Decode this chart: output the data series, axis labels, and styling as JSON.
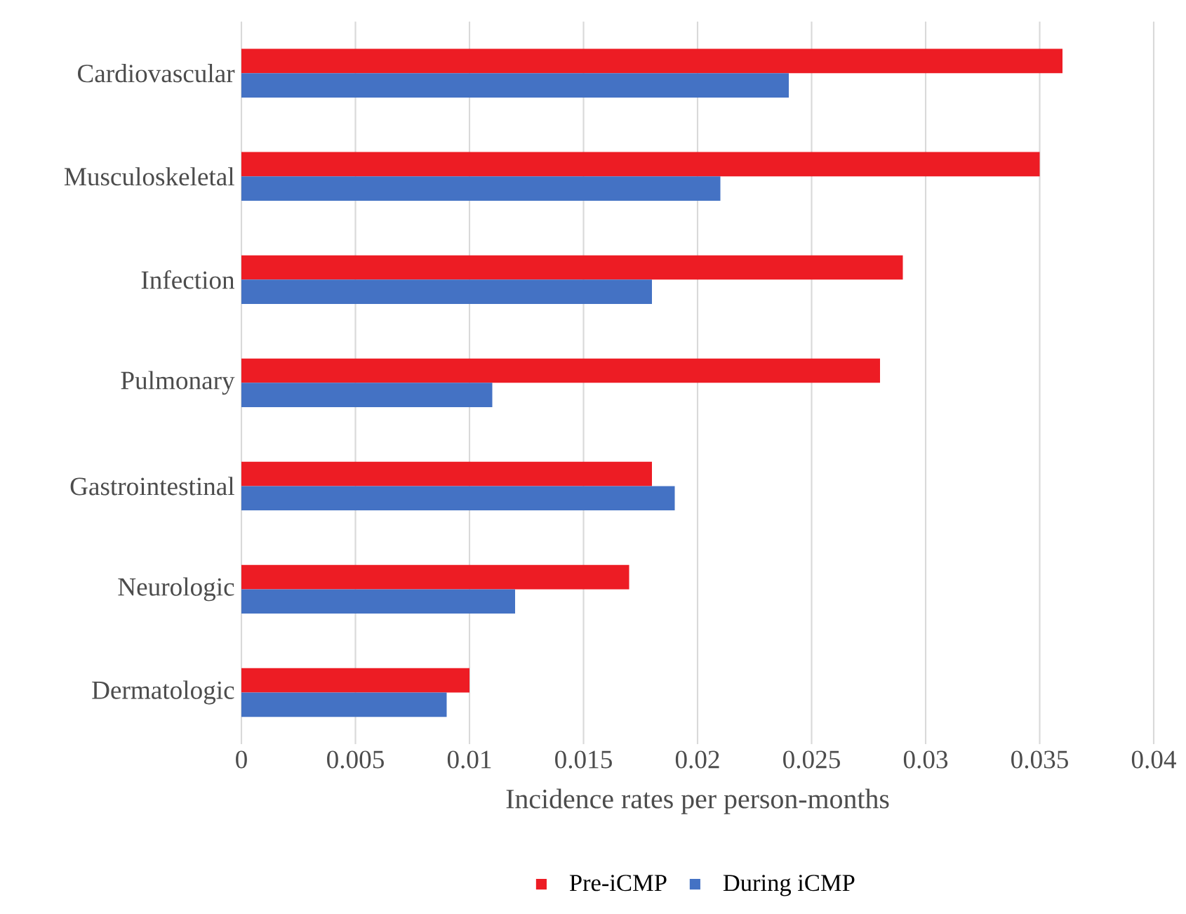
{
  "chart_data": {
    "type": "bar",
    "orientation": "horizontal",
    "xlabel": "Incidence rates per person-months",
    "categories": [
      "Cardiovascular",
      "Musculoskeletal",
      "Infection",
      "Pulmonary",
      "Gastrointestinal",
      "Neurologic",
      "Dermatologic"
    ],
    "series": [
      {
        "name": "Pre-iCMP",
        "color": "#ed1c24",
        "values": [
          0.036,
          0.035,
          0.029,
          0.028,
          0.018,
          0.017,
          0.01
        ]
      },
      {
        "name": "During iCMP",
        "color": "#4472c4",
        "values": [
          0.024,
          0.021,
          0.018,
          0.011,
          0.019,
          0.012,
          0.009
        ]
      }
    ],
    "xlim": [
      0,
      0.04
    ],
    "xticks": [
      0,
      0.005,
      0.01,
      0.015,
      0.02,
      0.025,
      0.03,
      0.035,
      0.04
    ],
    "grid": "x",
    "legend": "bottom"
  }
}
